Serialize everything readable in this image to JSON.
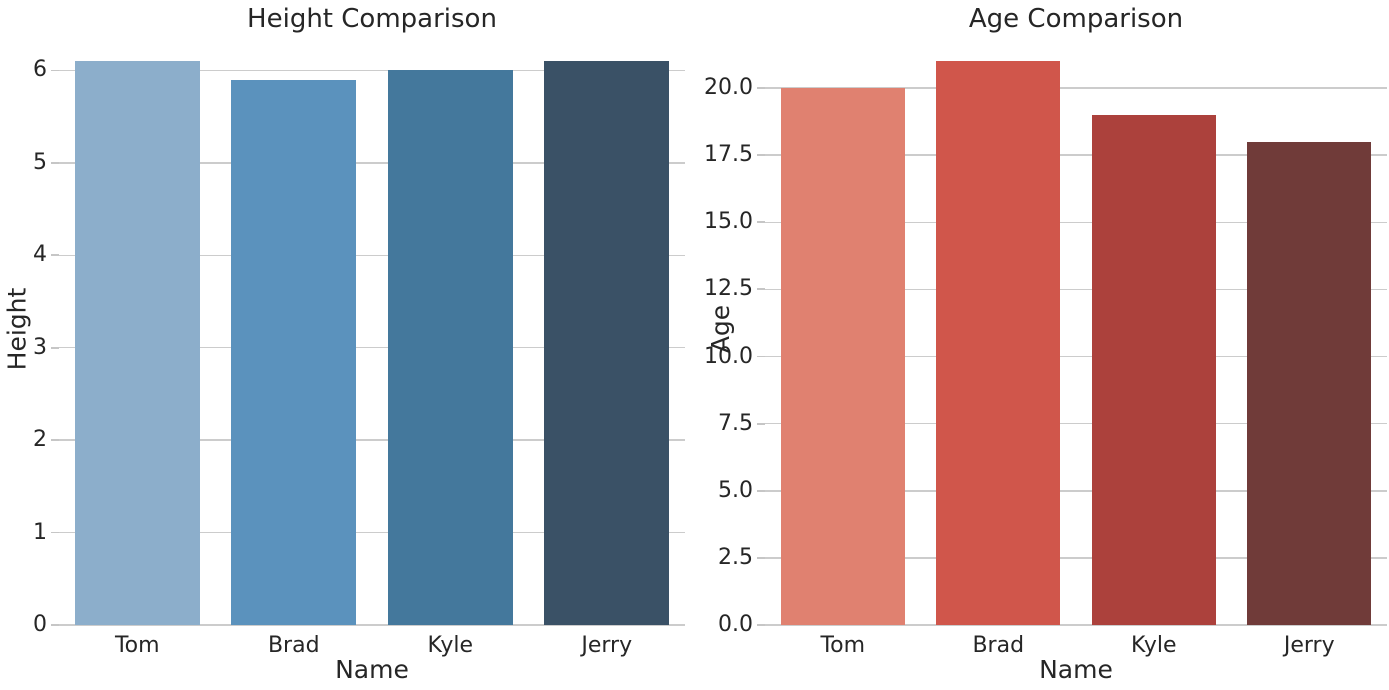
{
  "page": {
    "background_color": "#ffffff",
    "text_color": "#262626",
    "grid_color": "#cccccc"
  },
  "chart_data": [
    {
      "type": "bar",
      "title": "Height Comparison",
      "xlabel": "Name",
      "ylabel": "Height",
      "categories": [
        "Tom",
        "Brad",
        "Kyle",
        "Jerry"
      ],
      "values": [
        6.1,
        5.9,
        6.0,
        6.1
      ],
      "ylim": [
        0,
        6.405
      ],
      "yticks": [
        0,
        1,
        2,
        3,
        4,
        5,
        6
      ],
      "ytick_labels": [
        "0",
        "1",
        "2",
        "3",
        "4",
        "5",
        "6"
      ],
      "bar_colors": [
        "#8caecb",
        "#5b92bd",
        "#44789c",
        "#3a5166"
      ],
      "bar_width_fraction": 0.8,
      "grid": "horizontal",
      "legend": "none"
    },
    {
      "type": "bar",
      "title": "Age Comparison",
      "xlabel": "Name",
      "ylabel": "Age",
      "categories": [
        "Tom",
        "Brad",
        "Kyle",
        "Jerry"
      ],
      "values": [
        20,
        21,
        19,
        18
      ],
      "ylim": [
        0,
        22.05
      ],
      "yticks": [
        0,
        2.5,
        5,
        7.5,
        10,
        12.5,
        15,
        17.5,
        20
      ],
      "ytick_labels": [
        "0.0",
        "2.5",
        "5.0",
        "7.5",
        "10.0",
        "12.5",
        "15.0",
        "17.5",
        "20.0"
      ],
      "bar_colors": [
        "#e08170",
        "#d0564b",
        "#ac413c",
        "#703b39"
      ],
      "bar_width_fraction": 0.8,
      "grid": "horizontal",
      "legend": "none"
    }
  ]
}
